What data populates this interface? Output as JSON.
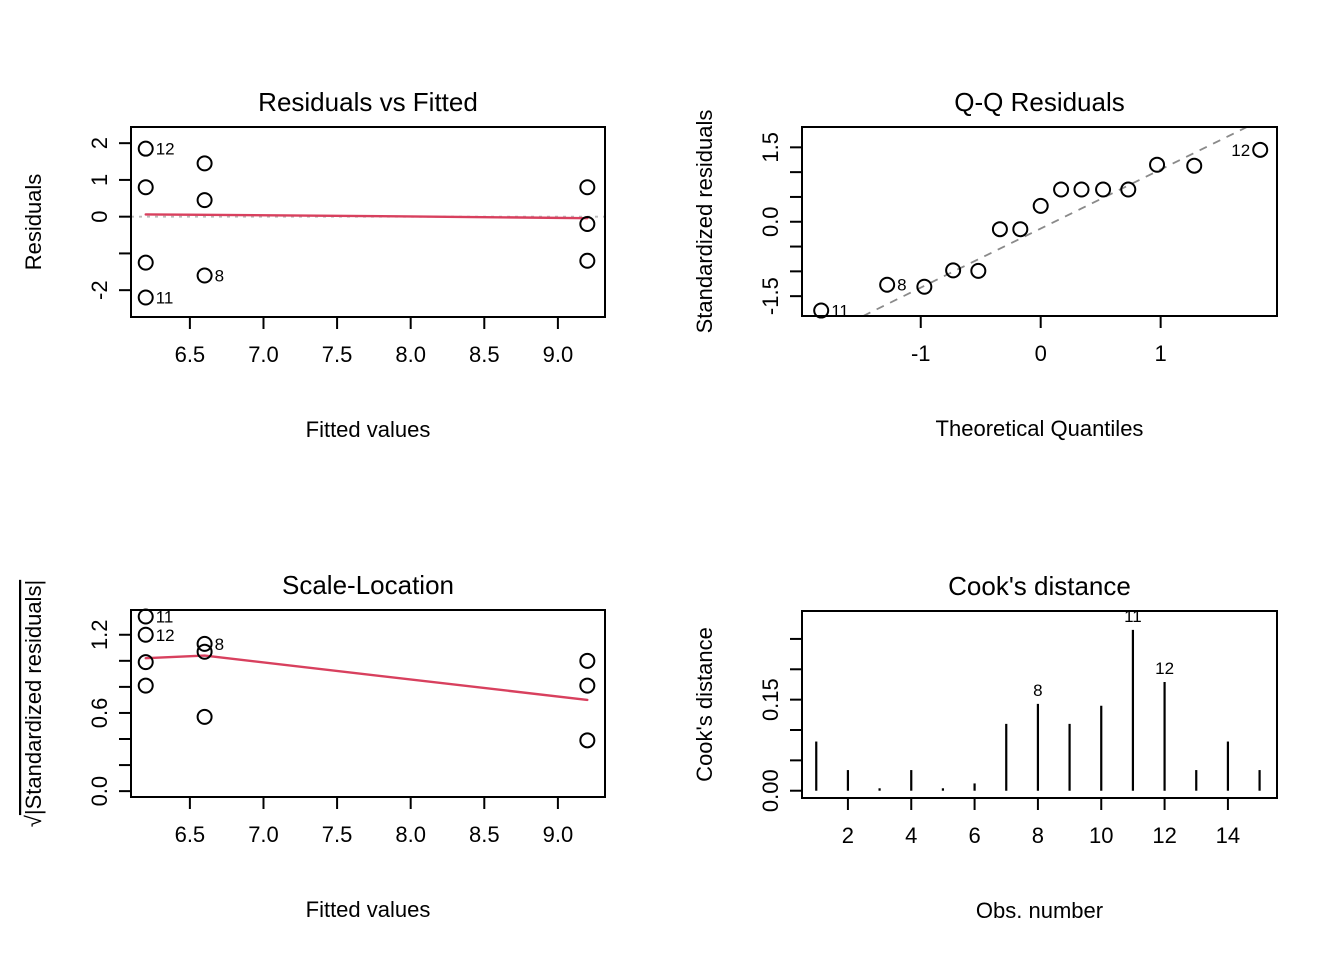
{
  "figure": {
    "background": "#ffffff",
    "colors": {
      "foreground": "#000000",
      "smooth_line": "#d8405e",
      "reference_line": "#bcbcbc",
      "qq_line": "#8a8a8a"
    }
  },
  "chart_data": [
    {
      "id": "residuals-vs-fitted",
      "type": "scatter",
      "title": "Residuals vs Fitted",
      "xlabel": "Fitted values",
      "ylabel": "Residuals",
      "xlim": [
        6.1,
        9.32
      ],
      "ylim": [
        -2.73,
        2.44
      ],
      "grid": false,
      "xticks": {
        "values": [
          6.5,
          7.0,
          7.5,
          8.0,
          8.5,
          9.0
        ],
        "labels": [
          "6.5",
          "7.0",
          "7.5",
          "8.0",
          "8.5",
          "9.0"
        ]
      },
      "yticks": {
        "values": [
          -2,
          -1,
          0,
          1,
          2
        ],
        "labels": [
          "-2",
          "",
          "0",
          "1",
          "2"
        ]
      },
      "points": [
        {
          "x": 6.2,
          "y": 1.85,
          "label": "12",
          "side": "right"
        },
        {
          "x": 6.6,
          "y": 1.45
        },
        {
          "x": 6.2,
          "y": 0.8
        },
        {
          "x": 6.6,
          "y": 0.45
        },
        {
          "x": 9.2,
          "y": 0.8
        },
        {
          "x": 9.2,
          "y": -0.2
        },
        {
          "x": 6.2,
          "y": -1.25
        },
        {
          "x": 9.2,
          "y": -1.2
        },
        {
          "x": 6.6,
          "y": -1.6,
          "label": "8",
          "side": "right"
        },
        {
          "x": 6.2,
          "y": -2.2,
          "label": "11",
          "side": "right"
        }
      ],
      "reference_line_y": 0,
      "smooth_line": [
        [
          6.2,
          0.06
        ],
        [
          6.6,
          0.05
        ],
        [
          7.9,
          0.01
        ],
        [
          9.2,
          -0.04
        ]
      ]
    },
    {
      "id": "qq-residuals",
      "type": "scatter",
      "title": "Q-Q Residuals",
      "xlabel": "Theoretical Quantiles",
      "ylabel": "Standardized residuals",
      "xlim": [
        -1.99,
        1.97
      ],
      "ylim": [
        -1.9,
        1.91
      ],
      "grid": false,
      "xticks": {
        "values": [
          -1,
          0,
          1
        ],
        "labels": [
          "-1",
          "0",
          "1"
        ]
      },
      "yticks": {
        "values": [
          -1.5,
          -1.0,
          -0.5,
          0.0,
          0.5,
          1.0,
          1.5
        ],
        "labels": [
          "-1.5",
          "",
          "",
          "0.0",
          "",
          "",
          "1.5"
        ]
      },
      "qq_line": [
        [
          -1.48,
          -1.9
        ],
        [
          1.72,
          1.91
        ]
      ],
      "points": [
        {
          "x": -1.83,
          "y": -1.79,
          "label": "11",
          "side": "right"
        },
        {
          "x": -1.28,
          "y": -1.27,
          "label": "8",
          "side": "right"
        },
        {
          "x": -0.97,
          "y": -1.31
        },
        {
          "x": -0.73,
          "y": -0.98
        },
        {
          "x": -0.52,
          "y": -0.99
        },
        {
          "x": -0.34,
          "y": -0.15
        },
        {
          "x": -0.17,
          "y": -0.15
        },
        {
          "x": 0.0,
          "y": 0.32
        },
        {
          "x": 0.17,
          "y": 0.65
        },
        {
          "x": 0.34,
          "y": 0.65
        },
        {
          "x": 0.52,
          "y": 0.65
        },
        {
          "x": 0.73,
          "y": 0.65
        },
        {
          "x": 0.97,
          "y": 1.15
        },
        {
          "x": 1.28,
          "y": 1.13
        },
        {
          "x": 1.83,
          "y": 1.45,
          "label": "12",
          "side": "left"
        }
      ]
    },
    {
      "id": "scale-location",
      "type": "scatter",
      "title": "Scale-Location",
      "xlabel": "Fitted values",
      "ylabel": "√|Standardized residuals|",
      "xlim": [
        6.1,
        9.32
      ],
      "ylim": [
        -0.045,
        1.39
      ],
      "grid": false,
      "xticks": {
        "values": [
          6.5,
          7.0,
          7.5,
          8.0,
          8.5,
          9.0
        ],
        "labels": [
          "6.5",
          "7.0",
          "7.5",
          "8.0",
          "8.5",
          "9.0"
        ]
      },
      "yticks": {
        "values": [
          0.0,
          0.2,
          0.4,
          0.6,
          0.8,
          1.0,
          1.2
        ],
        "labels": [
          "0.0",
          "",
          "",
          "0.6",
          "",
          "",
          "1.2"
        ]
      },
      "points": [
        {
          "x": 6.2,
          "y": 1.34,
          "label": "11",
          "side": "right"
        },
        {
          "x": 6.2,
          "y": 1.2,
          "label": "12",
          "side": "right"
        },
        {
          "x": 6.6,
          "y": 1.13,
          "label": "8",
          "side": "right"
        },
        {
          "x": 6.6,
          "y": 1.07
        },
        {
          "x": 6.2,
          "y": 0.99
        },
        {
          "x": 6.2,
          "y": 0.81
        },
        {
          "x": 9.2,
          "y": 1.0
        },
        {
          "x": 9.2,
          "y": 0.81
        },
        {
          "x": 6.6,
          "y": 0.57
        },
        {
          "x": 9.2,
          "y": 0.39
        }
      ],
      "smooth_line": [
        [
          6.2,
          1.02
        ],
        [
          6.6,
          1.04
        ],
        [
          9.2,
          0.7
        ]
      ]
    },
    {
      "id": "cooks-distance",
      "type": "bar",
      "title": "Cook's distance",
      "xlabel": "Obs. number",
      "ylabel": "Cook's distance",
      "xlim": [
        0.55,
        15.55
      ],
      "ylim": [
        -0.012,
        0.296
      ],
      "grid": false,
      "xticks": {
        "values": [
          2,
          4,
          6,
          8,
          10,
          12,
          14
        ],
        "labels": [
          "2",
          "4",
          "6",
          "8",
          "10",
          "12",
          "14"
        ]
      },
      "yticks": {
        "values": [
          0.0,
          0.05,
          0.1,
          0.15,
          0.2,
          0.25
        ],
        "labels": [
          "0.00",
          "",
          "",
          "0.15",
          "",
          ""
        ]
      },
      "bars": {
        "x": [
          1,
          2,
          3,
          4,
          5,
          6,
          7,
          8,
          9,
          10,
          11,
          12,
          13,
          14,
          15
        ],
        "values": [
          0.081,
          0.034,
          0.004,
          0.034,
          0.004,
          0.012,
          0.11,
          0.143,
          0.11,
          0.14,
          0.265,
          0.179,
          0.034,
          0.081,
          0.034
        ]
      },
      "bar_labels": [
        {
          "x": 8,
          "value": 0.143,
          "text": "8"
        },
        {
          "x": 11,
          "value": 0.265,
          "text": "11"
        },
        {
          "x": 12,
          "value": 0.179,
          "text": "12"
        }
      ]
    }
  ]
}
